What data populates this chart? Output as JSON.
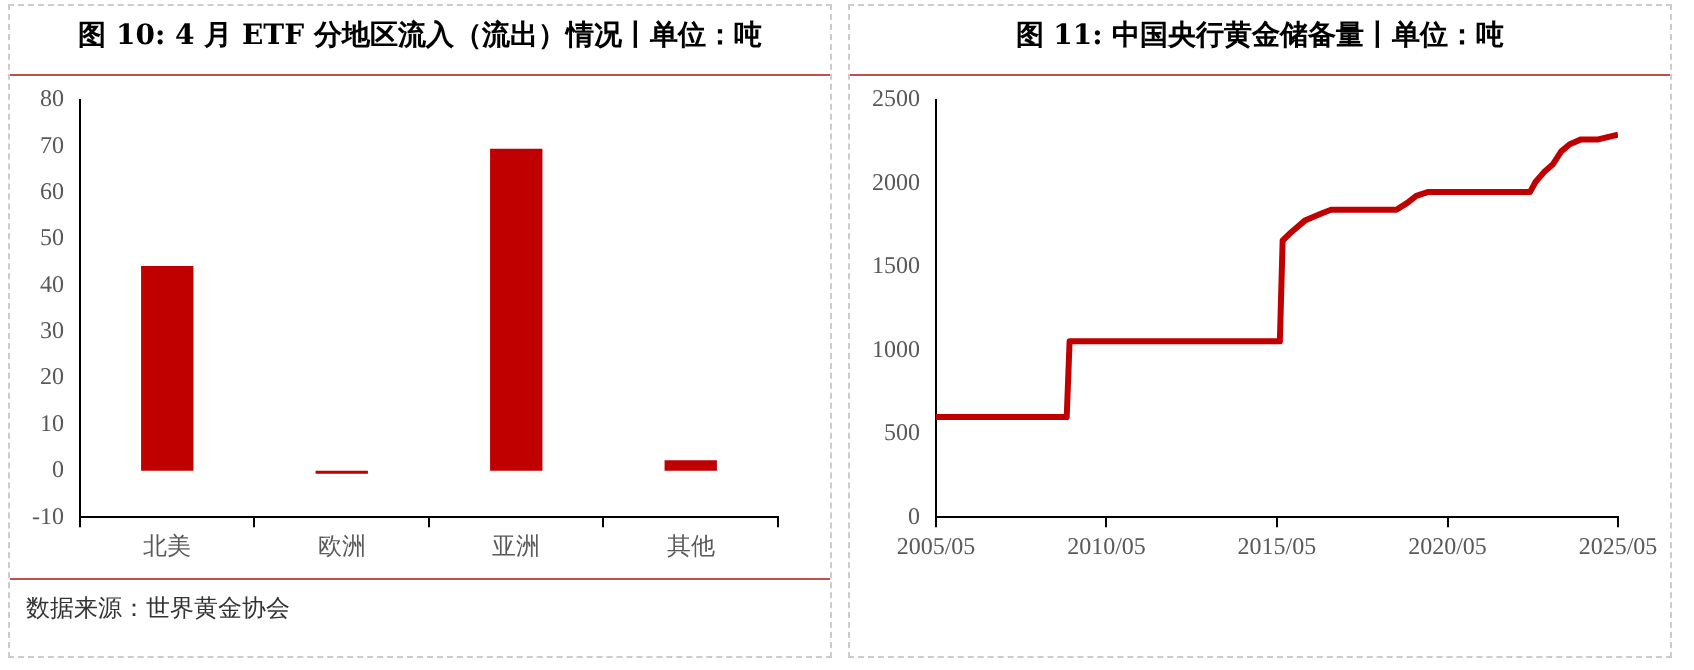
{
  "chart_data": [
    {
      "type": "bar",
      "title": "图 10: 4 月 ETF 分地区流入（流出）情况丨单位：吨",
      "categories": [
        "北美",
        "欧洲",
        "亚洲",
        "其他"
      ],
      "values": [
        44.2,
        -0.6,
        69.5,
        2.3
      ],
      "color": "#c00000",
      "ylim": [
        -10,
        80
      ],
      "yticks": [
        -10,
        0,
        10,
        20,
        30,
        40,
        50,
        60,
        70,
        80
      ],
      "annotations": [
        "数据来源：世界黄金协会"
      ]
    },
    {
      "type": "line",
      "title": "图 11: 中国央行黄金储备量丨单位：吨",
      "x": [
        "2005-05",
        "2009-03",
        "2009-04",
        "2015-06",
        "2015-07",
        "2015-10",
        "2016-03",
        "2016-09",
        "2016-12",
        "2018-11",
        "2019-03",
        "2019-06",
        "2019-10",
        "2022-10",
        "2022-12",
        "2023-03",
        "2023-06",
        "2023-09",
        "2023-12",
        "2024-04",
        "2024-10",
        "2025-05"
      ],
      "series": [
        {
          "color": "#c00000",
          "values": [
            600,
            600,
            1054,
            1054,
            1658,
            1708,
            1780,
            1823,
            1842,
            1842,
            1885,
            1926,
            1948,
            1948,
            2010,
            2068,
            2113,
            2192,
            2235,
            2264,
            2264,
            2292
          ]
        }
      ],
      "marker": "none",
      "xlim": [
        "2005-05",
        "2025-05"
      ],
      "xticks": [
        {
          "value": "2005-05",
          "label": "2005/05"
        },
        {
          "value": "2010-05",
          "label": "2010/05"
        },
        {
          "value": "2015-05",
          "label": "2015/05"
        },
        {
          "value": "2020-05",
          "label": "2020/05"
        },
        {
          "value": "2025-05",
          "label": "2025/05"
        }
      ],
      "ylim": [
        0,
        2500
      ],
      "yticks": [
        0,
        500,
        1000,
        1500,
        2000,
        2500
      ]
    }
  ]
}
